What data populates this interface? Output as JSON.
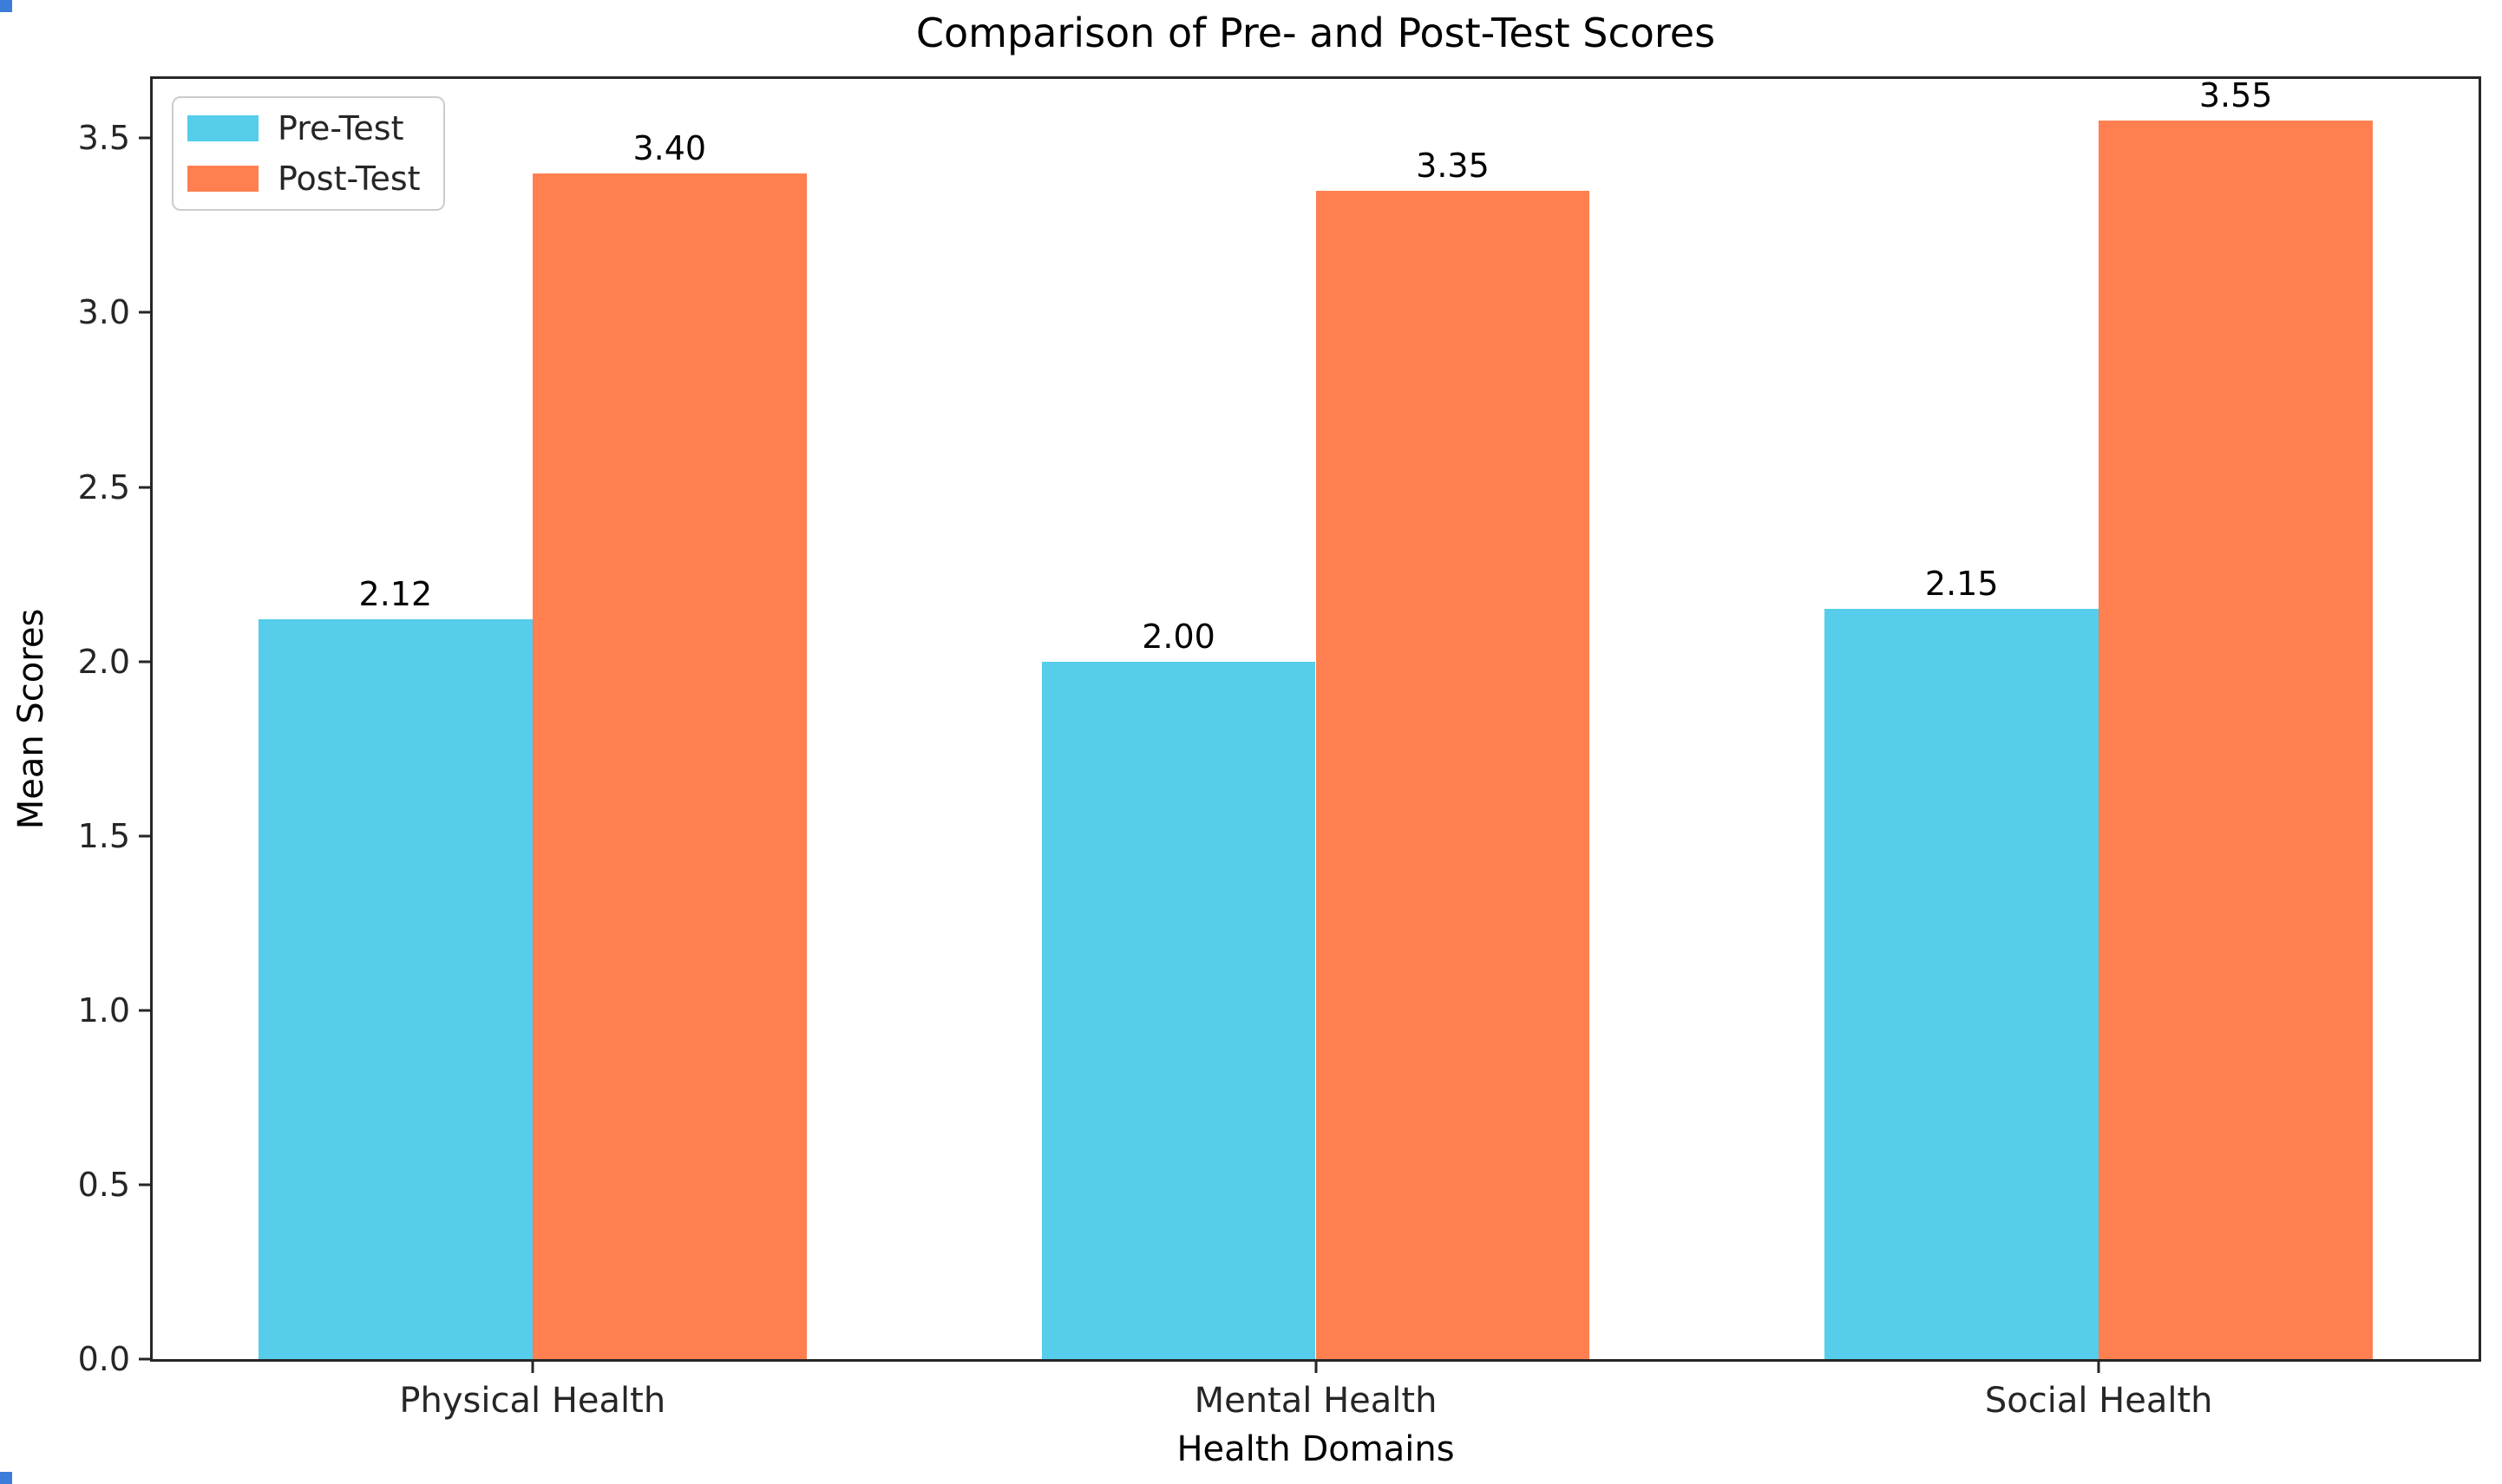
{
  "figure": {
    "title": "Comparison of Pre- and Post-Test Scores",
    "xlabel": "Health Domains",
    "ylabel": "Mean Scores"
  },
  "chart_data": {
    "type": "bar",
    "title": "Comparison of Pre- and Post-Test Scores",
    "xlabel": "Health Domains",
    "ylabel": "Mean Scores",
    "categories": [
      "Physical Health",
      "Mental Health",
      "Social Health"
    ],
    "series": [
      {
        "name": "Pre-Test",
        "color": "#55cdeb",
        "values": [
          2.12,
          2.0,
          2.15
        ],
        "value_labels": [
          "2.12",
          "2.00",
          "2.15"
        ]
      },
      {
        "name": "Post-Test",
        "color": "#ff7f50",
        "values": [
          3.4,
          3.35,
          3.55
        ],
        "value_labels": [
          "3.40",
          "3.35",
          "3.55"
        ]
      }
    ],
    "ylim": [
      0,
      3.67
    ],
    "yticks": [
      0.0,
      0.5,
      1.0,
      1.5,
      2.0,
      2.5,
      3.0,
      3.5
    ],
    "ytick_labels": [
      "0.0",
      "0.5",
      "1.0",
      "1.5",
      "2.0",
      "2.5",
      "3.0",
      "3.5"
    ],
    "x_range": [
      -0.485,
      2.485
    ],
    "x_positions": [
      0,
      1,
      2
    ],
    "bar_width_units": 0.35,
    "legend_position": "upper left",
    "grid": false,
    "spine_color": "#262626",
    "background_color": "#ffffff"
  }
}
